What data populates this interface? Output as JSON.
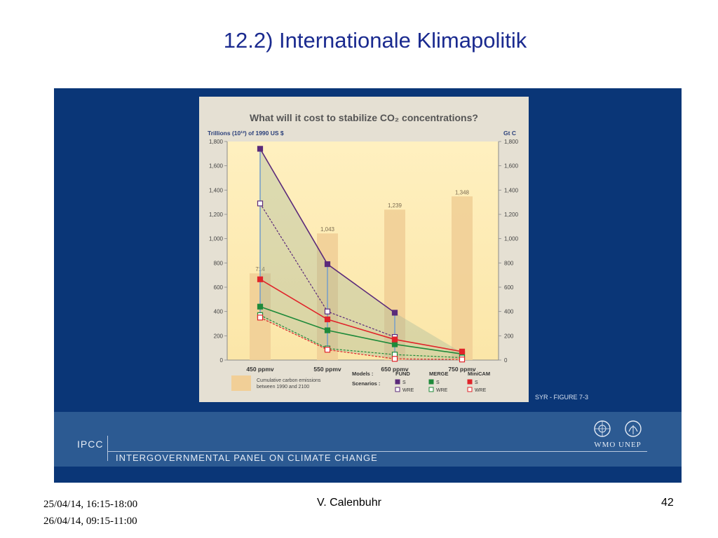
{
  "slide": {
    "title": "12.2) Internationale Klimapolitik",
    "footer_dates": [
      "25/04/14, 16:15-18:00",
      "26/04/14, 09:15-11:00"
    ],
    "footer_author": "V. Calenbuhr",
    "footer_page": "42"
  },
  "ipcc": {
    "abbr": "IPCC",
    "full": "INTERGOVERNMENTAL PANEL ON CLIMATE CHANGE",
    "logos": "WMO UNEP",
    "figure_label": "SYR - FIGURE 7-3"
  },
  "colors": {
    "panel": "#0a3677",
    "band": "#2c5a92",
    "fund": "#5b2a7a",
    "merge": "#1f8a3a",
    "minicam": "#e0242a",
    "bars": "#f1cf97",
    "plot_bg": "#fbe6a8"
  },
  "chart_data": {
    "type": "line",
    "title": "What will it cost to stabilize CO₂ concentrations?",
    "ylabel_left": "Trillions (10¹²) of 1990 US $",
    "ylabel_right": "Gt C",
    "categories": [
      "450 ppmv",
      "550 ppmv",
      "650 ppmv",
      "750 ppmv"
    ],
    "ylim": [
      0,
      1800
    ],
    "yticks": [
      0,
      200,
      400,
      600,
      800,
      1000,
      1200,
      1400,
      1600,
      1800
    ],
    "ytick_labels": [
      "0",
      "200",
      "400",
      "600",
      "800",
      "1,000",
      "1,200",
      "1,400",
      "1,600",
      "1,800"
    ],
    "bars": {
      "name": "Cumulative carbon emissions between 1990 and 2100",
      "values": [
        714,
        1043,
        1239,
        1348
      ],
      "labels": [
        "714",
        "1,043",
        "1,239",
        "1,348"
      ]
    },
    "series": [
      {
        "model": "FUND",
        "scenario": "S",
        "color_key": "fund",
        "dashed": false,
        "filled": true,
        "values": [
          1740,
          790,
          390,
          null
        ]
      },
      {
        "model": "FUND",
        "scenario": "WRE",
        "color_key": "fund",
        "dashed": true,
        "filled": false,
        "values": [
          1290,
          400,
          190,
          null
        ]
      },
      {
        "model": "MERGE",
        "scenario": "S",
        "color_key": "merge",
        "dashed": false,
        "filled": true,
        "values": [
          440,
          245,
          130,
          50
        ]
      },
      {
        "model": "MERGE",
        "scenario": "WRE",
        "color_key": "merge",
        "dashed": true,
        "filled": false,
        "values": [
          370,
          95,
          45,
          20
        ]
      },
      {
        "model": "MiniCAM",
        "scenario": "S",
        "color_key": "minicam",
        "dashed": false,
        "filled": true,
        "values": [
          665,
          335,
          170,
          70
        ]
      },
      {
        "model": "MiniCAM",
        "scenario": "WRE",
        "color_key": "minicam",
        "dashed": true,
        "filled": false,
        "values": [
          350,
          85,
          10,
          5
        ]
      }
    ],
    "legend": {
      "models_label": "Models :",
      "scenarios_label": "Scenarios :",
      "models": [
        "FUND",
        "MERGE",
        "MiniCAM"
      ],
      "scenarios": [
        "S",
        "WRE"
      ]
    }
  }
}
